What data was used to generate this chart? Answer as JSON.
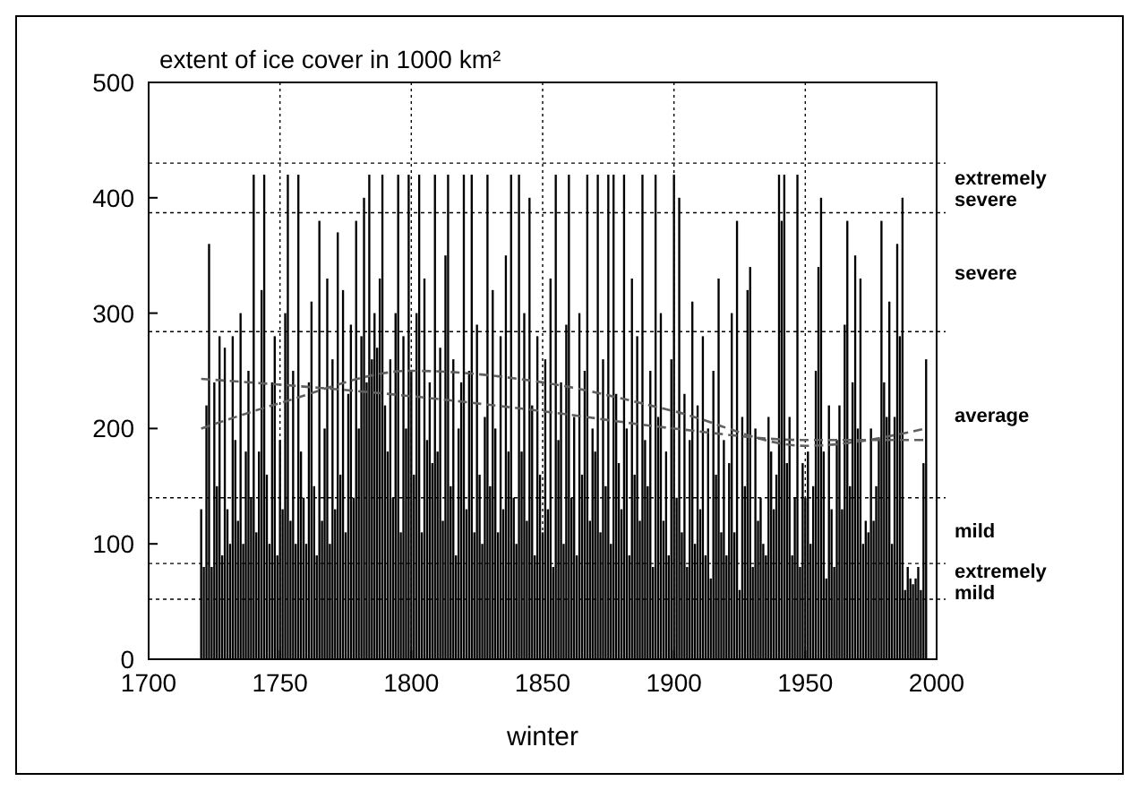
{
  "chart_data": {
    "type": "bar",
    "title": "extent of ice cover in 1000 km²",
    "xlabel": "winter",
    "xlim": [
      1700,
      2000
    ],
    "xticks": [
      1700,
      1750,
      1800,
      1850,
      1900,
      1950,
      2000
    ],
    "ylim": [
      0,
      500
    ],
    "yticks": [
      0,
      100,
      200,
      300,
      400,
      500
    ],
    "grid": "x",
    "series": [
      {
        "color": "#000000",
        "x": [
          1720,
          1721,
          1722,
          1723,
          1724,
          1725,
          1726,
          1727,
          1728,
          1729,
          1730,
          1731,
          1732,
          1733,
          1734,
          1735,
          1736,
          1737,
          1738,
          1739,
          1740,
          1741,
          1742,
          1743,
          1744,
          1745,
          1746,
          1747,
          1748,
          1749,
          1750,
          1751,
          1752,
          1753,
          1754,
          1755,
          1756,
          1757,
          1758,
          1759,
          1760,
          1761,
          1762,
          1763,
          1764,
          1765,
          1766,
          1767,
          1768,
          1769,
          1770,
          1771,
          1772,
          1773,
          1774,
          1775,
          1776,
          1777,
          1778,
          1779,
          1780,
          1781,
          1782,
          1783,
          1784,
          1785,
          1786,
          1787,
          1788,
          1789,
          1790,
          1791,
          1792,
          1793,
          1794,
          1795,
          1796,
          1797,
          1798,
          1799,
          1800,
          1801,
          1802,
          1803,
          1804,
          1805,
          1806,
          1807,
          1808,
          1809,
          1810,
          1811,
          1812,
          1813,
          1814,
          1815,
          1816,
          1817,
          1818,
          1819,
          1820,
          1821,
          1822,
          1823,
          1824,
          1825,
          1826,
          1827,
          1828,
          1829,
          1830,
          1831,
          1832,
          1833,
          1834,
          1835,
          1836,
          1837,
          1838,
          1839,
          1840,
          1841,
          1842,
          1843,
          1844,
          1845,
          1846,
          1847,
          1848,
          1849,
          1850,
          1851,
          1852,
          1853,
          1854,
          1855,
          1856,
          1857,
          1858,
          1859,
          1860,
          1861,
          1862,
          1863,
          1864,
          1865,
          1866,
          1867,
          1868,
          1869,
          1870,
          1871,
          1872,
          1873,
          1874,
          1875,
          1876,
          1877,
          1878,
          1879,
          1880,
          1881,
          1882,
          1883,
          1884,
          1885,
          1886,
          1887,
          1888,
          1889,
          1890,
          1891,
          1892,
          1893,
          1894,
          1895,
          1896,
          1897,
          1898,
          1899,
          1900,
          1901,
          1902,
          1903,
          1904,
          1905,
          1906,
          1907,
          1908,
          1909,
          1910,
          1911,
          1912,
          1913,
          1914,
          1915,
          1916,
          1917,
          1918,
          1919,
          1920,
          1921,
          1922,
          1923,
          1924,
          1925,
          1926,
          1927,
          1928,
          1929,
          1930,
          1931,
          1932,
          1933,
          1934,
          1935,
          1936,
          1937,
          1938,
          1939,
          1940,
          1941,
          1942,
          1943,
          1944,
          1945,
          1946,
          1947,
          1948,
          1949,
          1950,
          1951,
          1952,
          1953,
          1954,
          1955,
          1956,
          1957,
          1958,
          1959,
          1960,
          1961,
          1962,
          1963,
          1964,
          1965,
          1966,
          1967,
          1968,
          1969,
          1970,
          1971,
          1972,
          1973,
          1974,
          1975,
          1976,
          1977,
          1978,
          1979,
          1980,
          1981,
          1982,
          1983,
          1984,
          1985,
          1986,
          1987,
          1988,
          1989,
          1990,
          1991,
          1992,
          1993,
          1994,
          1995,
          1996
        ],
        "values": [
          130,
          80,
          220,
          360,
          80,
          240,
          150,
          280,
          90,
          270,
          130,
          100,
          280,
          190,
          120,
          300,
          100,
          180,
          250,
          140,
          420,
          110,
          180,
          320,
          420,
          160,
          100,
          240,
          280,
          90,
          190,
          130,
          300,
          420,
          120,
          250,
          100,
          420,
          180,
          140,
          100,
          240,
          310,
          150,
          90,
          380,
          120,
          200,
          330,
          100,
          260,
          130,
          370,
          160,
          320,
          110,
          230,
          290,
          140,
          380,
          200,
          280,
          400,
          240,
          420,
          260,
          300,
          270,
          330,
          420,
          220,
          180,
          260,
          140,
          300,
          420,
          110,
          280,
          200,
          420,
          250,
          160,
          300,
          420,
          110,
          330,
          190,
          240,
          170,
          420,
          180,
          270,
          120,
          350,
          420,
          150,
          260,
          90,
          200,
          240,
          420,
          130,
          250,
          420,
          110,
          290,
          160,
          100,
          210,
          420,
          150,
          320,
          200,
          110,
          280,
          130,
          350,
          180,
          420,
          140,
          100,
          420,
          180,
          300,
          120,
          400,
          220,
          90,
          280,
          160,
          110,
          260,
          130,
          330,
          80,
          420,
          190,
          240,
          100,
          290,
          420,
          140,
          210,
          90,
          300,
          160,
          250,
          420,
          120,
          200,
          180,
          420,
          110,
          260,
          150,
          420,
          100,
          420,
          230,
          170,
          130,
          420,
          200,
          90,
          330,
          160,
          280,
          120,
          420,
          190,
          150,
          250,
          80,
          420,
          210,
          300,
          120,
          180,
          90,
          260,
          420,
          140,
          400,
          110,
          230,
          80,
          190,
          310,
          100,
          220,
          130,
          280,
          90,
          200,
          70,
          250,
          160,
          330,
          110,
          190,
          90,
          170,
          300,
          110,
          380,
          60,
          210,
          150,
          320,
          340,
          80,
          200,
          120,
          140,
          100,
          90,
          210,
          180,
          130,
          160,
          420,
          380,
          420,
          170,
          210,
          90,
          140,
          420,
          80,
          170,
          140,
          180,
          100,
          150,
          250,
          340,
          400,
          180,
          70,
          220,
          130,
          80,
          190,
          220,
          130,
          290,
          380,
          150,
          240,
          350,
          200,
          330,
          100,
          120,
          110,
          200,
          120,
          150,
          190,
          380,
          240,
          210,
          310,
          100,
          210,
          360,
          280,
          400,
          60,
          80,
          70,
          65,
          70,
          80,
          60,
          170,
          260
        ]
      },
      {
        "type": "line",
        "color": "#606060",
        "line_style": "dashed",
        "x": [
          1720,
          1750,
          1800,
          1850,
          1900,
          1950,
          1996
        ],
        "values": [
          243,
          238,
          228,
          215,
          200,
          190,
          190
        ]
      },
      {
        "type": "line",
        "color": "#606060",
        "line_style": "dashed",
        "x": [
          1720,
          1750,
          1800,
          1850,
          1900,
          1950,
          1996
        ],
        "values": [
          200,
          222,
          250,
          240,
          215,
          185,
          200
        ]
      }
    ],
    "ref_lines": [
      {
        "axis": "y",
        "value": 430
      },
      {
        "axis": "y",
        "value": 387
      },
      {
        "axis": "y",
        "value": 284
      },
      {
        "axis": "y",
        "value": 140
      },
      {
        "axis": "y",
        "value": 83
      },
      {
        "axis": "y",
        "value": 52
      }
    ],
    "annotations": [
      "extremely severe",
      "severe",
      "average",
      "mild",
      "extremely mild"
    ]
  }
}
